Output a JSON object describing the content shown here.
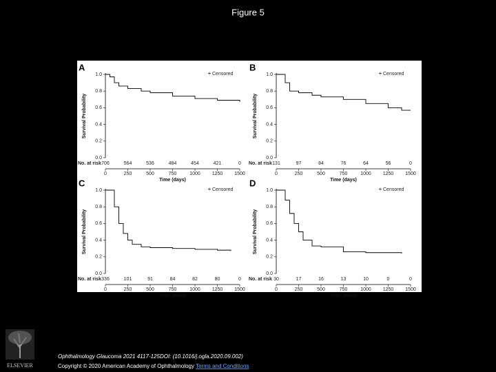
{
  "title": "Figure 5",
  "logo": "ELSEVIER",
  "footer": {
    "citation": "Ophthalmology Glaucoma 2021 4117-125DOI: (10.1016/j.ogla.2020.09.002)",
    "copyright": "Copyright © 2020 American Academy of Ophthalmology",
    "link": "Terms and Conditions"
  },
  "chart_data": [
    {
      "type": "line",
      "panel": "A",
      "ylabel": "Survival Probability",
      "xlabel": "Time (days)",
      "xlim": [
        0,
        1500
      ],
      "xticks": [
        0,
        250,
        500,
        750,
        1000,
        1250,
        1500
      ],
      "ylim": [
        0,
        1
      ],
      "yticks": [
        {
          "value": 0,
          "label": "0.0"
        },
        {
          "value": 0.2,
          "label": "0.2"
        },
        {
          "value": 0.4,
          "label": "0.4"
        },
        {
          "value": 0.6,
          "label": "0.6"
        },
        {
          "value": 0.8,
          "label": "0.8"
        },
        {
          "value": 1,
          "label": "1.0"
        }
      ],
      "x": [
        0,
        50,
        100,
        150,
        250,
        400,
        500,
        750,
        1000,
        1250,
        1500
      ],
      "series": [
        {
          "name": "Censored",
          "color": "#000000",
          "values": [
            1,
            0.97,
            0.9,
            0.86,
            0.83,
            0.8,
            0.78,
            0.74,
            0.71,
            0.69,
            0.67
          ]
        }
      ],
      "at_risk": {
        "label": "No. at risk",
        "values": [
          706,
          564,
          536,
          484,
          454,
          421,
          0
        ]
      }
    },
    {
      "type": "line",
      "panel": "B",
      "ylabel": "Survival Probability",
      "xlabel": "Time (days)",
      "xlim": [
        0,
        1500
      ],
      "xticks": [
        0,
        250,
        500,
        750,
        1000,
        1250,
        1500
      ],
      "ylim": [
        0,
        1
      ],
      "yticks": [
        {
          "value": 0,
          "label": "0.0"
        },
        {
          "value": 0.2,
          "label": "0.2"
        },
        {
          "value": 0.4,
          "label": "0.4"
        },
        {
          "value": 0.6,
          "label": "0.6"
        },
        {
          "value": 0.8,
          "label": "0.8"
        },
        {
          "value": 1,
          "label": "1.0"
        }
      ],
      "x": [
        0,
        60,
        100,
        150,
        250,
        400,
        500,
        750,
        1000,
        1250,
        1400,
        1500
      ],
      "series": [
        {
          "name": "Censored",
          "color": "#000000",
          "values": [
            1,
            1,
            0.9,
            0.8,
            0.78,
            0.75,
            0.73,
            0.7,
            0.65,
            0.6,
            0.57,
            0.57
          ]
        }
      ],
      "at_risk": {
        "label": "No. at risk",
        "values": [
          131,
          97,
          84,
          76,
          64,
          56,
          0
        ]
      }
    },
    {
      "type": "line",
      "panel": "C",
      "ylabel": "Survival Probability",
      "xlabel": "Time (days)",
      "xlim": [
        0,
        1500
      ],
      "xticks": [
        0,
        250,
        500,
        750,
        1000,
        1250,
        1500
      ],
      "ylim": [
        0,
        1
      ],
      "yticks": [
        {
          "value": 0,
          "label": "0.0"
        },
        {
          "value": 0.2,
          "label": "0.2"
        },
        {
          "value": 0.4,
          "label": "0.4"
        },
        {
          "value": 0.6,
          "label": "0.6"
        },
        {
          "value": 0.8,
          "label": "0.8"
        },
        {
          "value": 1,
          "label": "1.0"
        }
      ],
      "x": [
        0,
        60,
        100,
        150,
        200,
        250,
        300,
        400,
        500,
        750,
        1000,
        1250,
        1400
      ],
      "series": [
        {
          "name": "Censored",
          "color": "#000000",
          "values": [
            1,
            1,
            0.8,
            0.6,
            0.48,
            0.4,
            0.35,
            0.32,
            0.31,
            0.3,
            0.29,
            0.28,
            0.27
          ]
        }
      ],
      "at_risk": {
        "label": "No. at risk",
        "values": [
          336,
          101,
          91,
          84,
          82,
          80,
          0
        ]
      }
    },
    {
      "type": "line",
      "panel": "D",
      "ylabel": "Survival Probability",
      "xlabel": "Time (days)",
      "xlim": [
        0,
        1500
      ],
      "xticks": [
        0,
        250,
        500,
        750,
        1000,
        1250,
        1500
      ],
      "ylim": [
        0,
        1
      ],
      "yticks": [
        {
          "value": 0,
          "label": "0.0"
        },
        {
          "value": 0.2,
          "label": "0.2"
        },
        {
          "value": 0.4,
          "label": "0.4"
        },
        {
          "value": 0.6,
          "label": "0.6"
        },
        {
          "value": 0.8,
          "label": "0.8"
        },
        {
          "value": 1,
          "label": "1.0"
        }
      ],
      "x": [
        0,
        60,
        100,
        150,
        200,
        250,
        300,
        400,
        500,
        750,
        1000,
        1250,
        1400
      ],
      "series": [
        {
          "name": "Censored",
          "color": "#000000",
          "values": [
            1,
            1,
            0.88,
            0.72,
            0.6,
            0.5,
            0.4,
            0.33,
            0.32,
            0.26,
            0.25,
            0.25,
            0.24
          ]
        }
      ],
      "at_risk": {
        "label": "No. at risk",
        "values": [
          30,
          17,
          16,
          13,
          10,
          0,
          0
        ]
      }
    }
  ]
}
